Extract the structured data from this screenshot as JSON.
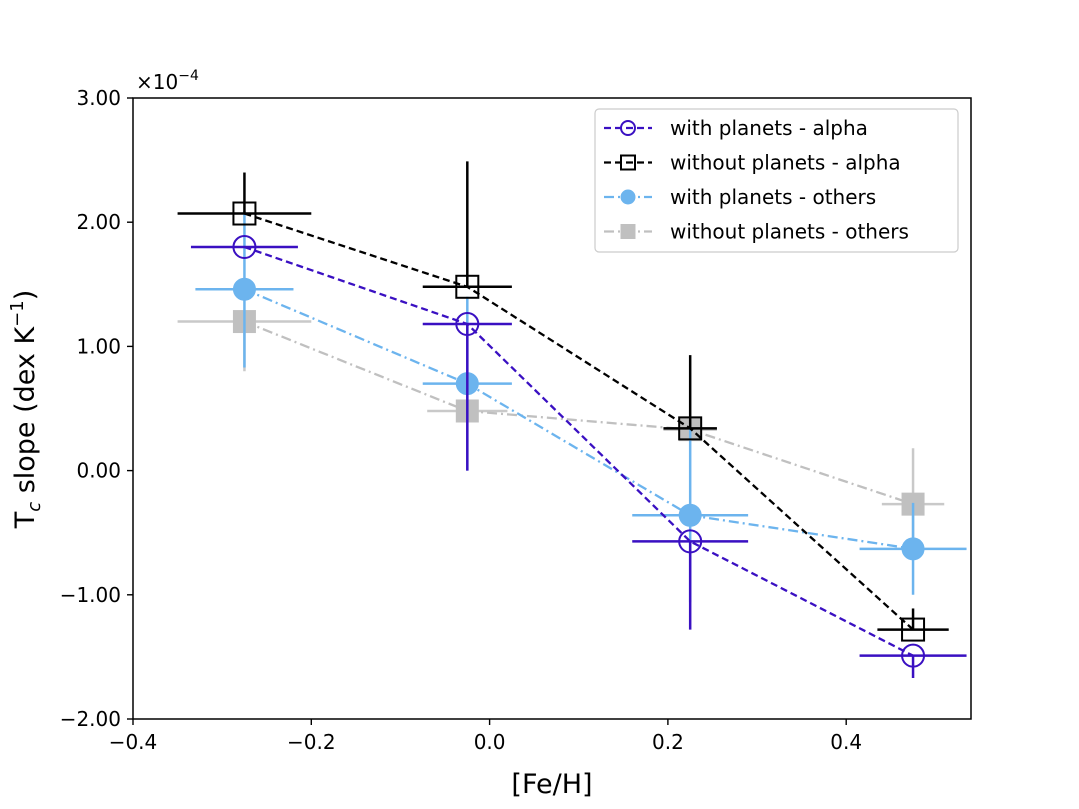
{
  "chart_data": {
    "type": "line",
    "title": "",
    "xlabel": "[Fe/H]",
    "ylabel": {
      "main": "T",
      "sub": "c",
      "rest": " slope (dex K",
      "sup": "−1",
      "close": ")"
    },
    "y_multiplier": "×10",
    "y_multiplier_exp": "−4",
    "xlim": [
      -0.4,
      0.54
    ],
    "ylim": [
      -2.0,
      3.0
    ],
    "xticks": [
      -0.4,
      -0.2,
      0.0,
      0.2,
      0.4
    ],
    "xtick_labels": [
      "−0.4",
      "−0.2",
      "0.0",
      "0.2",
      "0.4"
    ],
    "yticks": [
      -2.0,
      -1.0,
      0.0,
      1.0,
      2.0,
      3.0
    ],
    "ytick_labels": [
      "−2.00",
      "−1.00",
      "0.00",
      "1.00",
      "2.00",
      "3.00"
    ],
    "legend_position": "top-right",
    "series": [
      {
        "name": "without planets - others",
        "color": "#c0c0c0",
        "dash": "dashdot",
        "marker": "filled-square",
        "points": [
          {
            "x": -0.275,
            "y": 1.2,
            "xerr": 0.075,
            "yerr": [
              0.4,
              0.0
            ]
          },
          {
            "x": -0.025,
            "y": 0.48,
            "xerr": 0.045,
            "yerr": [
              0.0,
              0.0
            ]
          },
          {
            "x": 0.225,
            "y": 0.33,
            "xerr": 0.03,
            "yerr": [
              0.0,
              0.0
            ]
          },
          {
            "x": 0.475,
            "y": -0.27,
            "xerr": 0.035,
            "yerr": [
              0.45,
              0.45
            ]
          }
        ]
      },
      {
        "name": "with planets - others",
        "color": "#6cb4ee",
        "dash": "dashdot",
        "marker": "filled-circle",
        "points": [
          {
            "x": -0.275,
            "y": 1.46,
            "xerr": 0.055,
            "yerr": [
              0.63,
              0.63
            ]
          },
          {
            "x": -0.025,
            "y": 0.7,
            "xerr": 0.05,
            "yerr": [
              0.7,
              0.7
            ]
          },
          {
            "x": 0.225,
            "y": -0.36,
            "xerr": 0.065,
            "yerr": [
              0.7,
              0.7
            ]
          },
          {
            "x": 0.475,
            "y": -0.63,
            "xerr": 0.06,
            "yerr": [
              0.37,
              0.37
            ]
          }
        ]
      },
      {
        "name": "with planets - alpha",
        "color": "#3a10c2",
        "dash": "dashed",
        "marker": "open-circle",
        "points": [
          {
            "x": -0.275,
            "y": 1.8,
            "xerr": 0.06,
            "yerr": [
              0.0,
              0.0
            ]
          },
          {
            "x": -0.025,
            "y": 1.18,
            "xerr": 0.05,
            "yerr": [
              1.18,
              0.0
            ]
          },
          {
            "x": 0.225,
            "y": -0.57,
            "xerr": 0.065,
            "yerr": [
              0.71,
              0.0
            ]
          },
          {
            "x": 0.475,
            "y": -1.49,
            "xerr": 0.06,
            "yerr": [
              0.18,
              0.0
            ]
          }
        ]
      },
      {
        "name": "without planets - alpha",
        "color": "#000000",
        "dash": "dashed",
        "marker": "open-square",
        "points": [
          {
            "x": -0.275,
            "y": 2.07,
            "xerr": 0.075,
            "yerr": [
              0.0,
              0.33
            ]
          },
          {
            "x": -0.025,
            "y": 1.48,
            "xerr": 0.05,
            "yerr": [
              0.0,
              1.01
            ]
          },
          {
            "x": 0.225,
            "y": 0.34,
            "xerr": 0.03,
            "yerr": [
              0.0,
              0.59
            ]
          },
          {
            "x": 0.475,
            "y": -1.28,
            "xerr": 0.04,
            "yerr": [
              0.0,
              0.17
            ]
          }
        ]
      }
    ],
    "legend": [
      {
        "label": "with planets - alpha",
        "color": "#3a10c2",
        "dash": "dashed",
        "marker": "open-circle"
      },
      {
        "label": "without planets - alpha",
        "color": "#000000",
        "dash": "dashed",
        "marker": "open-square"
      },
      {
        "label": "with planets - others",
        "color": "#6cb4ee",
        "dash": "dashdot",
        "marker": "filled-circle"
      },
      {
        "label": "without planets - others",
        "color": "#c0c0c0",
        "dash": "dashdot",
        "marker": "filled-square"
      }
    ]
  }
}
